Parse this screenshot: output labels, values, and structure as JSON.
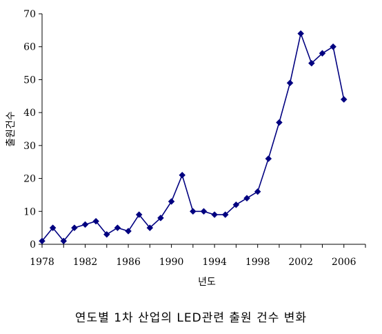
{
  "chart_data": {
    "type": "line",
    "title": "",
    "xlabel": "년도",
    "ylabel": "출원건수",
    "caption": "연도별 1차 산업의 LED관련 출원 건수 변화",
    "x": [
      1978,
      1979,
      1980,
      1981,
      1982,
      1983,
      1984,
      1985,
      1986,
      1987,
      1988,
      1989,
      1990,
      1991,
      1992,
      1993,
      1994,
      1995,
      1996,
      1997,
      1998,
      1999,
      2000,
      2001,
      2002,
      2003,
      2004,
      2005,
      2006
    ],
    "series": [
      {
        "values": [
          1,
          5,
          1,
          5,
          6,
          7,
          3,
          5,
          4,
          9,
          5,
          8,
          13,
          21,
          10,
          10,
          9,
          9,
          12,
          14,
          16,
          26,
          37,
          49,
          64,
          55,
          58,
          60,
          44
        ]
      }
    ],
    "xlim": [
      1978,
      2008
    ],
    "ylim": [
      0,
      70
    ],
    "x_ticks": [
      "1978",
      "1982",
      "1986",
      "1990",
      "1994",
      "1998",
      "2002",
      "2006"
    ],
    "y_ticks": [
      "0",
      "10",
      "20",
      "30",
      "40",
      "50",
      "60",
      "70"
    ],
    "grid": false,
    "legend": "none",
    "line_color": "#000080",
    "marker_color": "#000080",
    "marker": "diamond"
  }
}
